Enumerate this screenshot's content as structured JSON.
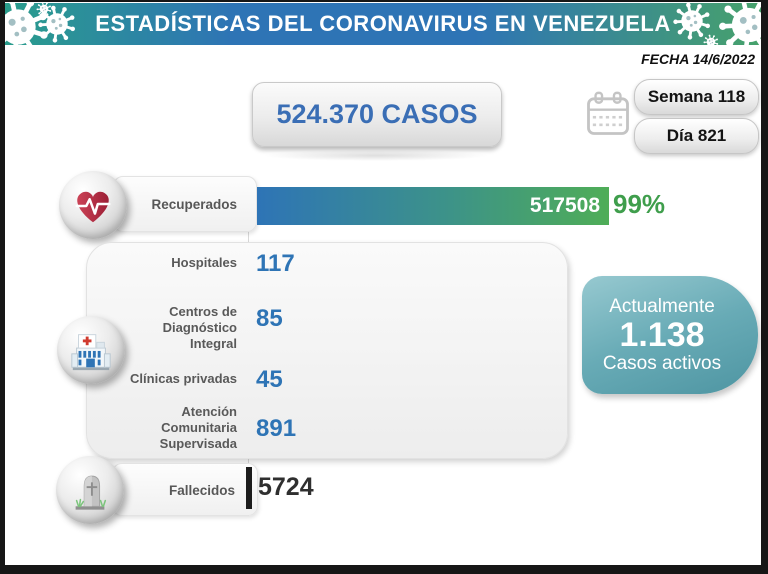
{
  "header": {
    "title": "ESTADÍSTICAS DEL CORONAVIRUS EN VENEZUELA",
    "date": "FECHA 14/6/2022"
  },
  "summary": {
    "total_cases": "524.370 CASOS",
    "week": "Semana 118",
    "day": "Día 821"
  },
  "recovered": {
    "label": "Recuperados",
    "value": "517508",
    "percent": "99%"
  },
  "facilities": [
    {
      "label": "Hospitales",
      "value": "117"
    },
    {
      "label": "Centros de Diagnóstico Integral",
      "value": "85"
    },
    {
      "label": "Clínicas privadas",
      "value": "45"
    },
    {
      "label": "Atención Comunitaria Supervisada",
      "value": "891"
    }
  ],
  "active": {
    "line1": "Actualmente",
    "value": "1.138",
    "line2": "Casos activos"
  },
  "deaths": {
    "label": "Fallecidos",
    "value": "5724"
  },
  "colors": {
    "banner_teal": "#2A9D8C",
    "banner_blue": "#2E74B5",
    "banner_green": "#47A26B",
    "accent_blue": "#2E74B5",
    "bar_gradient_start": "#2E74B6",
    "bar_gradient_end": "#4FAD57",
    "percent_green": "#3F9E4C",
    "active_teal": "#5FA6B1",
    "deaths_bar_black": "#1C1C1C"
  },
  "icons": [
    "virus-icon",
    "calendar-icon",
    "heart-ekg-icon",
    "hospital-icon",
    "tombstone-icon"
  ],
  "chart_data": {
    "type": "bar",
    "title": "ESTADÍSTICAS DEL CORONAVIRUS EN VENEZUELA",
    "date": "14/6/2022",
    "total_cases": 524370,
    "week": 118,
    "day": 821,
    "active_cases": 1138,
    "recovered_percent": 99,
    "categories": [
      "Recuperados",
      "Hospitales",
      "Centros de Diagnóstico Integral",
      "Clínicas privadas",
      "Atención Comunitaria Supervisada",
      "Fallecidos"
    ],
    "values": [
      517508,
      117,
      85,
      45,
      891,
      5724
    ],
    "legend_position": "none",
    "grid": false
  }
}
